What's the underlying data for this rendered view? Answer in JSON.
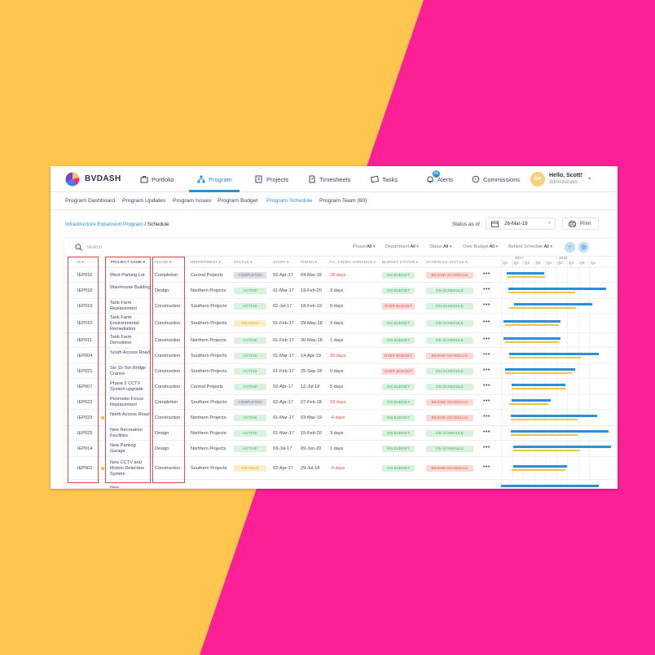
{
  "colors": {
    "yellow_bg": "#fec64f",
    "pink_bg": "#fd1f96",
    "accent": "#2a90d8",
    "highlight_box": "#e24b4b"
  },
  "app": {
    "brand": "BVDASH",
    "nav": [
      {
        "label": "Portfolio",
        "icon": "briefcase-icon"
      },
      {
        "label": "Program",
        "icon": "hierarchy-icon",
        "active": true
      },
      {
        "label": "Projects",
        "icon": "projects-icon"
      },
      {
        "label": "Timesheets",
        "icon": "timesheet-icon"
      },
      {
        "label": "Tasks",
        "icon": "tasks-icon"
      },
      {
        "label": "Alerts",
        "icon": "bell-icon",
        "badge": "60"
      },
      {
        "label": "Commissions",
        "icon": "chat-icon"
      }
    ],
    "user": {
      "initials": "SM",
      "greeting": "Hello, Scott!",
      "role": "Administrator"
    }
  },
  "subnav": [
    "Program Dashboard",
    "Program Updates",
    "Program Issues",
    "Program Budget",
    "Program Schedule",
    "Program Team (60)"
  ],
  "subnav_active": "Program Schedule",
  "breadcrumb": {
    "link": "Infrastructure Expansion Program",
    "separator": " / ",
    "current": "Schedule"
  },
  "status_as_of": {
    "label": "Status as of",
    "date": "26-Mar-19"
  },
  "print_label": "Print",
  "search_placeholder": "Search",
  "filters": [
    {
      "label": "Phase",
      "value": "All"
    },
    {
      "label": "Department",
      "value": "All"
    },
    {
      "label": "Status",
      "value": "All"
    },
    {
      "label": "Over Budget",
      "value": "All"
    },
    {
      "label": "Behind Schedule",
      "value": "All"
    }
  ],
  "columns": [
    "ID",
    "PROJECT NAME",
    "PHASE",
    "DEPARTMENT",
    "STATUS",
    "START",
    "FINISH",
    "P.C. FINISH VARIANCE",
    "BUDGET STATUS",
    "SCHEDULE STATUS"
  ],
  "gantt": {
    "years": [
      "2017",
      "2018"
    ],
    "quarters": [
      "Q1",
      "Q2",
      "Q3",
      "Q4",
      "Q1",
      "Q2",
      "Q3",
      "Q4",
      "Q1"
    ]
  },
  "rows": [
    {
      "id": "IEP016",
      "name": "West Parking Lot",
      "dot": false,
      "phase": "Completion",
      "dept": "Central Projects",
      "status": "COMPLETED",
      "start": "02-Apr-17",
      "finish": "04-Mar-18",
      "variance": "28 days",
      "neg": true,
      "budget": "ON BUDGET",
      "schedule": "BEHIND SCHEDULE",
      "progress": 0.25
    },
    {
      "id": "IEP018",
      "name": "Warehouse Building",
      "dot": false,
      "phase": "Design",
      "dept": "Northern Projects",
      "status": "ACTIVE",
      "start": "01-Mar-17",
      "finish": "19-Feb-20",
      "variance": "3 days",
      "neg": false,
      "budget": "ON BUDGET",
      "schedule": "ON SCHEDULE",
      "progress": 0.25
    },
    {
      "id": "IEP019",
      "name": "Tank Farm Replacement",
      "dot": false,
      "phase": "Construction",
      "dept": "Southern Projects",
      "status": "ACTIVE",
      "start": "02-Jul-17",
      "finish": "18-Feb-19",
      "variance": "5 days",
      "neg": false,
      "budget": "OVER BUDGET",
      "schedule": "ON SCHEDULE",
      "progress": 0.3
    },
    {
      "id": "IEP010",
      "name": "Tank Farm Environmental Remediation",
      "dot": false,
      "phase": "Construction",
      "dept": "Southern Projects",
      "status": "ON HOLD",
      "start": "01-Feb-17",
      "finish": "29-May-18",
      "variance": "3 days",
      "neg": false,
      "budget": "ON BUDGET",
      "schedule": "ON SCHEDULE",
      "progress": 0.3
    },
    {
      "id": "IEP011",
      "name": "Tank Farm Demolition",
      "dot": false,
      "phase": "Construction",
      "dept": "Northern Projects",
      "status": "ACTIVE",
      "start": "01-Feb-17",
      "finish": "30-May-18",
      "variance": "1 days",
      "neg": false,
      "budget": "ON BUDGET",
      "schedule": "ON SCHEDULE",
      "progress": 0.3
    },
    {
      "id": "IEP004",
      "name": "South Access Road",
      "dot": false,
      "phase": "Construction",
      "dept": "Southern Projects",
      "status": "ACTIVE",
      "start": "01-Mar-17",
      "finish": "14-Apr-19",
      "variance": "35 days",
      "neg": true,
      "budget": "OVER BUDGET",
      "schedule": "BEHIND SCHEDULE",
      "progress": 0.3
    },
    {
      "id": "IEP021",
      "name": "Six 10-Ton Bridge Cranes",
      "dot": false,
      "phase": "Construction",
      "dept": "Southern Projects",
      "status": "ACTIVE",
      "start": "01-Feb-17",
      "finish": "25-Sep-18",
      "variance": "0 days",
      "neg": false,
      "budget": "OVER BUDGET",
      "schedule": "ON SCHEDULE",
      "progress": 0.3
    },
    {
      "id": "IEP007",
      "name": "Phase 2 CCTV System upgrade",
      "dot": false,
      "phase": "Construction",
      "dept": "Central Projects",
      "status": "ACTIVE",
      "start": "02-Apr-17",
      "finish": "12-Jul-18",
      "variance": "5 days",
      "neg": false,
      "budget": "ON BUDGET",
      "schedule": "ON SCHEDULE",
      "progress": 0.3
    },
    {
      "id": "IEP022",
      "name": "Perimeter Fence Replacement",
      "dot": false,
      "phase": "Completion",
      "dept": "Southern Projects",
      "status": "COMPLETED",
      "start": "02-Apr-17",
      "finish": "27-Feb-18",
      "variance": "33 days",
      "neg": true,
      "budget": "ON BUDGET",
      "schedule": "BEHIND SCHEDULE",
      "progress": 0.25
    },
    {
      "id": "IEP023",
      "name": "North Access Road",
      "dot": true,
      "phase": "Construction",
      "dept": "Northern Projects",
      "status": "ACTIVE",
      "start": "01-Mar-17",
      "finish": "03-Mar-19",
      "variance": "-4 days",
      "neg": true,
      "budget": "ON BUDGET",
      "schedule": "BEHIND SCHEDULE",
      "progress": 0.3
    },
    {
      "id": "IEP025",
      "name": "New Recreation Facilities",
      "dot": false,
      "phase": "Design",
      "dept": "Northern Projects",
      "status": "ACTIVE",
      "start": "01-Mar-17",
      "finish": "15-Feb-20",
      "variance": "3 days",
      "neg": false,
      "budget": "ON BUDGET",
      "schedule": "ON SCHEDULE",
      "progress": 0.25
    },
    {
      "id": "IEP014",
      "name": "New Parking Garage",
      "dot": false,
      "phase": "Design",
      "dept": "Northern Projects",
      "status": "ACTIVE",
      "start": "03-Jul-17",
      "finish": "09-Jun-20",
      "variance": "1 days",
      "neg": false,
      "budget": "ON BUDGET",
      "schedule": "ON SCHEDULE",
      "progress": 0.25
    },
    {
      "id": "IEP002",
      "name": "New CCTV and Motion Detection System",
      "dot": true,
      "phase": "Construction",
      "dept": "Southern Projects",
      "status": "ON HOLD",
      "start": "02-Apr-17",
      "finish": "29-Jul-18",
      "variance": "-4 days",
      "neg": true,
      "budget": "ON BUDGET",
      "schedule": "BEHIND SCHEDULE",
      "progress": 0.3
    },
    {
      "id": "",
      "name": "New",
      "dot": false,
      "phase": "",
      "dept": "",
      "status": "",
      "start": "",
      "finish": "",
      "variance": "",
      "neg": false,
      "budget": "",
      "schedule": "",
      "progress": 0.3
    }
  ]
}
